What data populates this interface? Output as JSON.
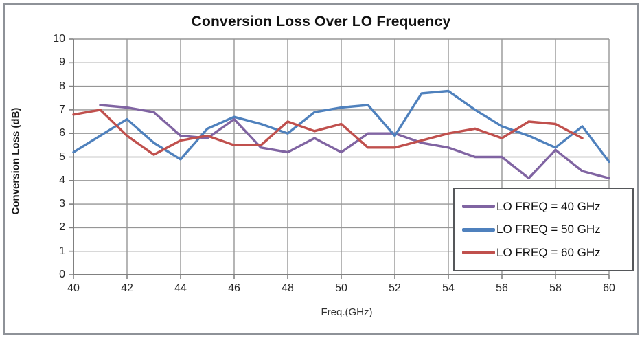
{
  "window": {
    "background": "#ffffff",
    "frame_border_color": "#8e9298"
  },
  "chart_data": {
    "type": "line",
    "title": "Conversion Loss Over LO Frequency",
    "xlabel": "Freq.(GHz)",
    "ylabel": "Conversion Loss (dB)",
    "xlim": [
      40,
      60
    ],
    "ylim": [
      0,
      10
    ],
    "x_tick_step": 2,
    "y_tick_step": 1,
    "x_ticks": [
      "40",
      "42",
      "44",
      "46",
      "48",
      "50",
      "52",
      "54",
      "56",
      "58",
      "60"
    ],
    "y_ticks": [
      "0",
      "1",
      "2",
      "3",
      "4",
      "5",
      "6",
      "7",
      "8",
      "9",
      "10"
    ],
    "grid": true,
    "grid_color": "#969696",
    "axis_color": "#808080",
    "legend_position": "right-middle-overlay",
    "x": [
      40,
      41,
      42,
      43,
      44,
      45,
      46,
      47,
      48,
      49,
      50,
      51,
      52,
      53,
      54,
      55,
      56,
      57,
      58,
      59,
      60
    ],
    "series": [
      {
        "name": "LO FREQ = 40 GHz",
        "color": "#8064A2",
        "values": [
          null,
          7.2,
          7.1,
          6.9,
          5.9,
          5.8,
          6.6,
          5.4,
          5.2,
          5.8,
          5.2,
          6.0,
          6.0,
          5.6,
          5.4,
          5.0,
          5.0,
          4.1,
          5.3,
          4.4,
          4.1
        ]
      },
      {
        "name": "LO FREQ = 50 GHz",
        "color": "#4F81BD",
        "values": [
          5.2,
          5.9,
          6.6,
          5.6,
          4.9,
          6.2,
          6.7,
          6.4,
          6.0,
          6.9,
          7.1,
          7.2,
          5.9,
          7.7,
          7.8,
          7.0,
          6.3,
          5.9,
          5.4,
          6.3,
          4.8
        ]
      },
      {
        "name": "LO FREQ = 60 GHz",
        "color": "#C0504D",
        "values": [
          6.8,
          7.0,
          5.9,
          5.1,
          5.7,
          5.9,
          5.5,
          5.5,
          6.5,
          6.1,
          6.4,
          5.4,
          5.4,
          5.7,
          6.0,
          6.2,
          5.8,
          6.5,
          6.4,
          5.8,
          null
        ]
      }
    ]
  },
  "legend": {
    "items": [
      {
        "label": "LO FREQ = 40 GHz",
        "color": "#8064A2"
      },
      {
        "label": "LO FREQ = 50 GHz",
        "color": "#4F81BD"
      },
      {
        "label": "LO FREQ = 60 GHz",
        "color": "#C0504D"
      }
    ]
  }
}
